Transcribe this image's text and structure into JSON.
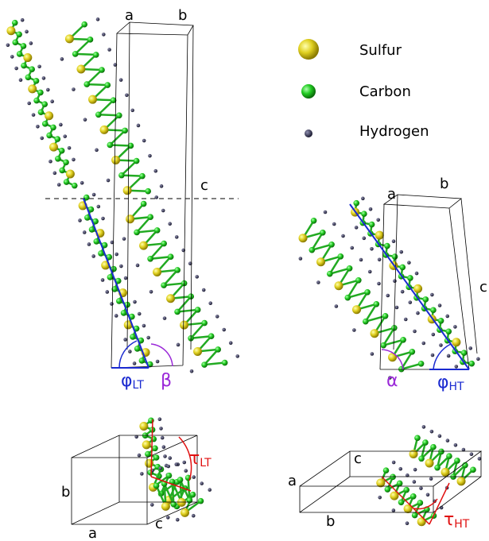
{
  "legend": [
    {
      "label": "Sulfur"
    },
    {
      "label": "Carbon"
    },
    {
      "label": "Hydrogen"
    }
  ],
  "low_temperature": {
    "axes": [
      "a",
      "b",
      "c"
    ],
    "phi": {
      "symbol": "φ",
      "subscript": "LT"
    },
    "beta": "β"
  },
  "high_temperature": {
    "axes": [
      "a",
      "b",
      "c"
    ],
    "alpha": "α",
    "phi": {
      "symbol": "φ",
      "subscript": "HT"
    }
  },
  "low_temperature_view": {
    "axes": [
      "b",
      "a",
      "c"
    ],
    "tau": {
      "symbol": "τ",
      "subscript": "LT"
    }
  },
  "high_temperature_view": {
    "axes": [
      "c",
      "a",
      "b"
    ],
    "tau": {
      "symbol": "τ",
      "subscript": "HT"
    }
  }
}
